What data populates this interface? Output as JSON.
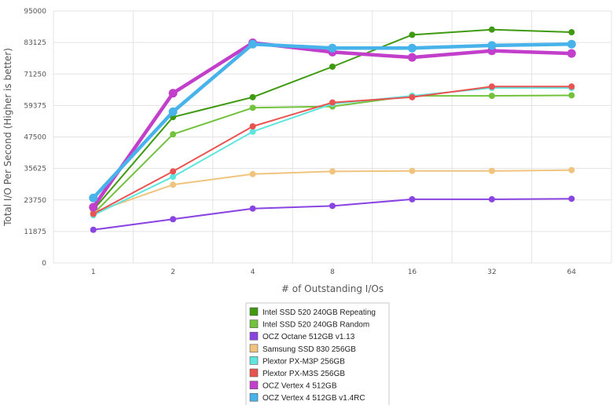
{
  "chart_data": {
    "type": "line",
    "title": "",
    "xlabel": "# of Outstanding I/Os",
    "ylabel": "Total I/O Per Second (Higher is better)",
    "categories": [
      "1",
      "2",
      "4",
      "8",
      "16",
      "32",
      "64"
    ],
    "ylim": [
      0,
      95000
    ],
    "yticks": [
      "0",
      "11875",
      "23750",
      "35625",
      "47500",
      "59375",
      "71250",
      "83125",
      "95000"
    ],
    "grid": true,
    "legend_position": "bottom",
    "series": [
      {
        "name": "Intel SSD 520 240GB Repeating",
        "color": "#3f9a12",
        "values": [
          20000,
          55000,
          62500,
          74000,
          86000,
          88000,
          87000
        ]
      },
      {
        "name": "Intel SSD 520 240GB Random",
        "color": "#72c23c",
        "values": [
          18500,
          48500,
          58500,
          59000,
          63000,
          63000,
          63200
        ]
      },
      {
        "name": "OCZ Octane 512GB v1.13",
        "color": "#8a44e2",
        "values": [
          12500,
          16500,
          20500,
          21500,
          24000,
          24000,
          24200
        ]
      },
      {
        "name": "Samsung SSD 830 256GB",
        "color": "#f0c47e",
        "values": [
          19000,
          29500,
          33500,
          34500,
          34700,
          34700,
          35000
        ]
      },
      {
        "name": "Plextor PX-M3P 256GB",
        "color": "#5ee6de",
        "values": [
          18000,
          32500,
          49500,
          60000,
          63000,
          66000,
          66000
        ]
      },
      {
        "name": "Plextor PX-M3S 256GB",
        "color": "#e95352",
        "values": [
          18500,
          34500,
          51500,
          60500,
          62500,
          66500,
          66500
        ]
      },
      {
        "name": "OCZ Vertex 4 512GB",
        "color": "#c23fcb",
        "values": [
          21000,
          64000,
          83000,
          79500,
          77500,
          80000,
          79000
        ]
      },
      {
        "name": "OCZ Vertex 4 512GB v1.4RC",
        "color": "#48b2ea",
        "values": [
          24500,
          57000,
          82500,
          81000,
          81000,
          82000,
          82500
        ]
      }
    ]
  }
}
